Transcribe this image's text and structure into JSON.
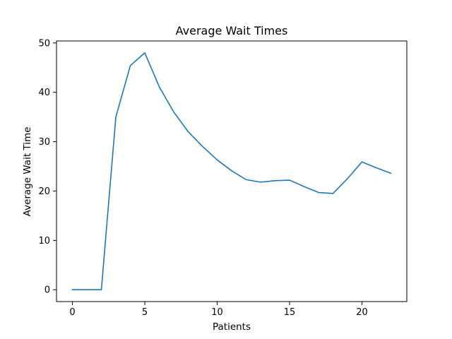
{
  "chart_data": {
    "type": "line",
    "title": "Average Wait Times",
    "xlabel": "Patients",
    "ylabel": "Average Wait Time",
    "xlim": [
      -1.1,
      23.1
    ],
    "ylim": [
      -2.4,
      50.4
    ],
    "xticks": [
      0,
      5,
      10,
      15,
      20
    ],
    "yticks": [
      0,
      10,
      20,
      30,
      40,
      50
    ],
    "grid": false,
    "series": [
      {
        "color": "#1f77b4",
        "x": [
          0,
          1,
          2,
          3,
          4,
          5,
          6,
          7,
          8,
          9,
          10,
          11,
          12,
          13,
          14,
          15,
          16,
          17,
          18,
          19,
          20,
          21,
          22
        ],
        "y": [
          0,
          0,
          0,
          35,
          45.4,
          48,
          41.1,
          36,
          32,
          29,
          26.3,
          24.1,
          22.3,
          21.8,
          22.1,
          22.2,
          20.9,
          19.7,
          19.5,
          22.5,
          25.9,
          24.7,
          23.6
        ]
      }
    ]
  }
}
